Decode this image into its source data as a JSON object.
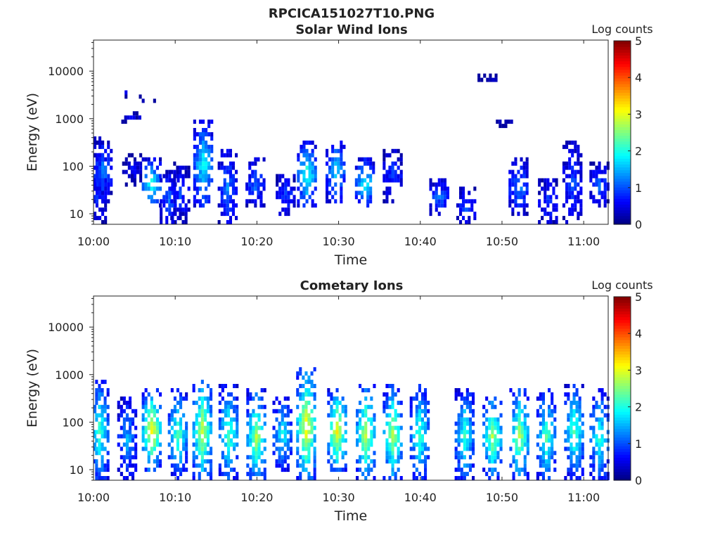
{
  "figure": {
    "title": "RPCICA151027T10.PNG"
  },
  "chart_data": [
    {
      "type": "heatmap",
      "title": "Solar Wind Ions",
      "xlabel": "Time",
      "ylabel": "Energy (eV)",
      "yscale": "log",
      "ylim": [
        6,
        45000
      ],
      "xlim_minutes": [
        0,
        63
      ],
      "xticks": [
        "10:00",
        "10:10",
        "10:20",
        "10:30",
        "10:40",
        "10:50",
        "11:00"
      ],
      "yticks": [
        "10",
        "100",
        "1000",
        "10000"
      ],
      "colorbar": {
        "title": "Log counts",
        "range": [
          0,
          5
        ],
        "ticks": [
          "0",
          "1",
          "2",
          "3",
          "4",
          "5"
        ],
        "colormap": "jet"
      },
      "bursts": [
        {
          "t": 0.3,
          "e_low": 6,
          "e_high": 350,
          "peak": 1.0
        },
        {
          "t": 1.0,
          "e_low": 20,
          "e_high": 300,
          "peak": 1.3
        },
        {
          "t": 3.8,
          "e_low": 3500,
          "e_high": 3500,
          "peak": 0.5
        },
        {
          "t": 4.5,
          "e_low": 1000,
          "e_high": 1100,
          "peak": 0.5
        },
        {
          "t": 4.6,
          "e_low": 50,
          "e_high": 150,
          "peak": 0.6
        },
        {
          "t": 6.3,
          "e_low": 2500,
          "e_high": 2600,
          "peak": 0.5
        },
        {
          "t": 7.0,
          "e_low": 15,
          "e_high": 120,
          "peak": 2.1
        },
        {
          "t": 9.2,
          "e_low": 6,
          "e_high": 70,
          "peak": 1.2
        },
        {
          "t": 10.5,
          "e_low": 8,
          "e_high": 100,
          "peak": 1.0
        },
        {
          "t": 13.3,
          "e_low": 15,
          "e_high": 800,
          "peak": 2.0
        },
        {
          "t": 16.3,
          "e_low": 6,
          "e_high": 200,
          "peak": 1.3
        },
        {
          "t": 19.7,
          "e_low": 15,
          "e_high": 120,
          "peak": 1.2
        },
        {
          "t": 23.4,
          "e_low": 10,
          "e_high": 60,
          "peak": 1.0
        },
        {
          "t": 26.0,
          "e_low": 15,
          "e_high": 300,
          "peak": 2.2
        },
        {
          "t": 29.5,
          "e_low": 20,
          "e_high": 300,
          "peak": 1.8
        },
        {
          "t": 33.1,
          "e_low": 15,
          "e_high": 130,
          "peak": 2.0
        },
        {
          "t": 36.5,
          "e_low": 20,
          "e_high": 200,
          "peak": 1.0
        },
        {
          "t": 42.2,
          "e_low": 10,
          "e_high": 50,
          "peak": 1.2
        },
        {
          "t": 45.5,
          "e_low": 6,
          "e_high": 30,
          "peak": 1.0
        },
        {
          "t": 48.1,
          "e_low": 7000,
          "e_high": 7200,
          "peak": 0.5
        },
        {
          "t": 50.0,
          "e_low": 800,
          "e_high": 850,
          "peak": 0.5
        },
        {
          "t": 51.9,
          "e_low": 10,
          "e_high": 120,
          "peak": 1.4
        },
        {
          "t": 55.5,
          "e_low": 6,
          "e_high": 50,
          "peak": 1.0
        },
        {
          "t": 58.5,
          "e_low": 6,
          "e_high": 300,
          "peak": 1.0
        },
        {
          "t": 61.8,
          "e_low": 15,
          "e_high": 100,
          "peak": 1.2
        }
      ]
    },
    {
      "type": "heatmap",
      "title": "Cometary Ions",
      "xlabel": "Time",
      "ylabel": "Energy (eV)",
      "yscale": "log",
      "ylim": [
        6,
        45000
      ],
      "xlim_minutes": [
        0,
        63
      ],
      "xticks": [
        "10:00",
        "10:10",
        "10:20",
        "10:30",
        "10:40",
        "10:50",
        "11:00"
      ],
      "yticks": [
        "10",
        "100",
        "1000",
        "10000"
      ],
      "colorbar": {
        "title": "Log counts",
        "range": [
          0,
          5
        ],
        "ticks": [
          "0",
          "1",
          "2",
          "3",
          "4",
          "5"
        ],
        "colormap": "jet"
      },
      "bursts": [
        {
          "t": 0.6,
          "e_low": 6,
          "e_high": 700,
          "peak": 2.3
        },
        {
          "t": 4.0,
          "e_low": 6,
          "e_high": 300,
          "peak": 1.5
        },
        {
          "t": 7.0,
          "e_low": 10,
          "e_high": 400,
          "peak": 3.3
        },
        {
          "t": 10.2,
          "e_low": 8,
          "e_high": 400,
          "peak": 2.4
        },
        {
          "t": 13.2,
          "e_low": 6,
          "e_high": 700,
          "peak": 3.0
        },
        {
          "t": 16.4,
          "e_low": 6,
          "e_high": 500,
          "peak": 2.4
        },
        {
          "t": 19.8,
          "e_low": 6,
          "e_high": 400,
          "peak": 2.8
        },
        {
          "t": 23.0,
          "e_low": 10,
          "e_high": 300,
          "peak": 2.0
        },
        {
          "t": 25.9,
          "e_low": 6,
          "e_high": 1100,
          "peak": 3.3
        },
        {
          "t": 29.7,
          "e_low": 10,
          "e_high": 400,
          "peak": 3.2
        },
        {
          "t": 33.2,
          "e_low": 6,
          "e_high": 500,
          "peak": 3.0
        },
        {
          "t": 36.5,
          "e_low": 6,
          "e_high": 500,
          "peak": 2.8
        },
        {
          "t": 39.8,
          "e_low": 6,
          "e_high": 500,
          "peak": 2.3
        },
        {
          "t": 45.3,
          "e_low": 6,
          "e_high": 450,
          "peak": 2.2
        },
        {
          "t": 48.7,
          "e_low": 8,
          "e_high": 300,
          "peak": 2.8
        },
        {
          "t": 52.0,
          "e_low": 6,
          "e_high": 450,
          "peak": 2.8
        },
        {
          "t": 55.3,
          "e_low": 6,
          "e_high": 400,
          "peak": 2.4
        },
        {
          "t": 58.7,
          "e_low": 8,
          "e_high": 500,
          "peak": 2.4
        },
        {
          "t": 61.8,
          "e_low": 6,
          "e_high": 400,
          "peak": 2.2
        }
      ]
    }
  ]
}
